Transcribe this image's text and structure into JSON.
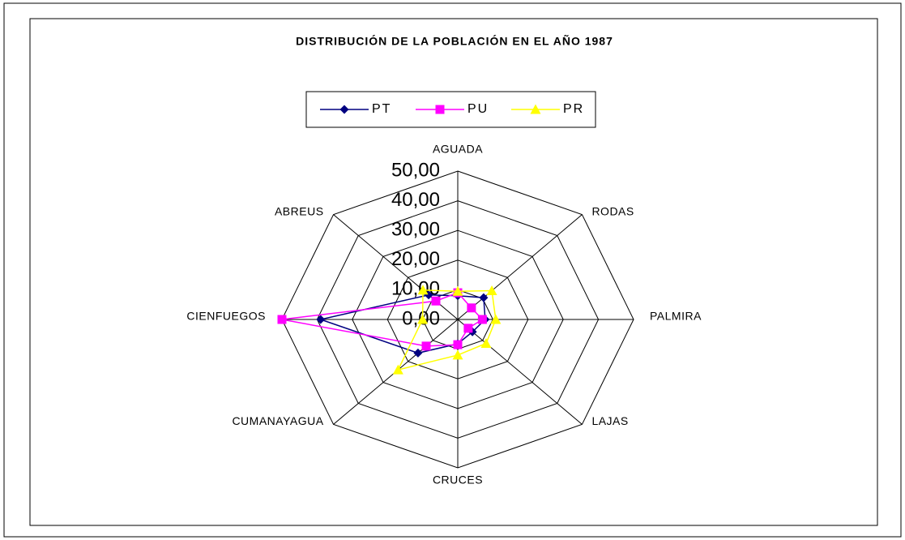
{
  "chart_data": {
    "type": "radar",
    "title": "DISTRIBUCIÓN DE LA POBLACIÓN EN EL AÑO 1987",
    "categories": [
      "AGUADA",
      "RODAS",
      "PALMIRA",
      "LAJAS",
      "CRUCES",
      "CUMANAYAGUA",
      "CIENFUEGOS",
      "ABREUS"
    ],
    "series": [
      {
        "name": "PT",
        "color": "#000080",
        "marker": "diamond",
        "values": [
          8,
          10.4,
          7.8,
          5.9,
          8.2,
          16,
          39,
          11.7
        ]
      },
      {
        "name": "PU",
        "color": "#ff00ff",
        "marker": "square",
        "values": [
          9,
          5.5,
          7,
          4.2,
          8.5,
          12.7,
          50,
          8.8
        ]
      },
      {
        "name": "PR",
        "color": "#ffff00",
        "marker": "triangle",
        "values": [
          9.5,
          13.7,
          10.8,
          11.4,
          12,
          24,
          10,
          14
        ]
      }
    ],
    "ylim": [
      0,
      50
    ],
    "yticks": [
      {
        "value": 0,
        "label": "0,00"
      },
      {
        "value": 10,
        "label": "10,00"
      },
      {
        "value": 20,
        "label": "20,00"
      },
      {
        "value": 30,
        "label": "30,00"
      },
      {
        "value": 40,
        "label": "40,00"
      },
      {
        "value": 50,
        "label": "50,00"
      }
    ],
    "grid": true,
    "legend": "top"
  }
}
